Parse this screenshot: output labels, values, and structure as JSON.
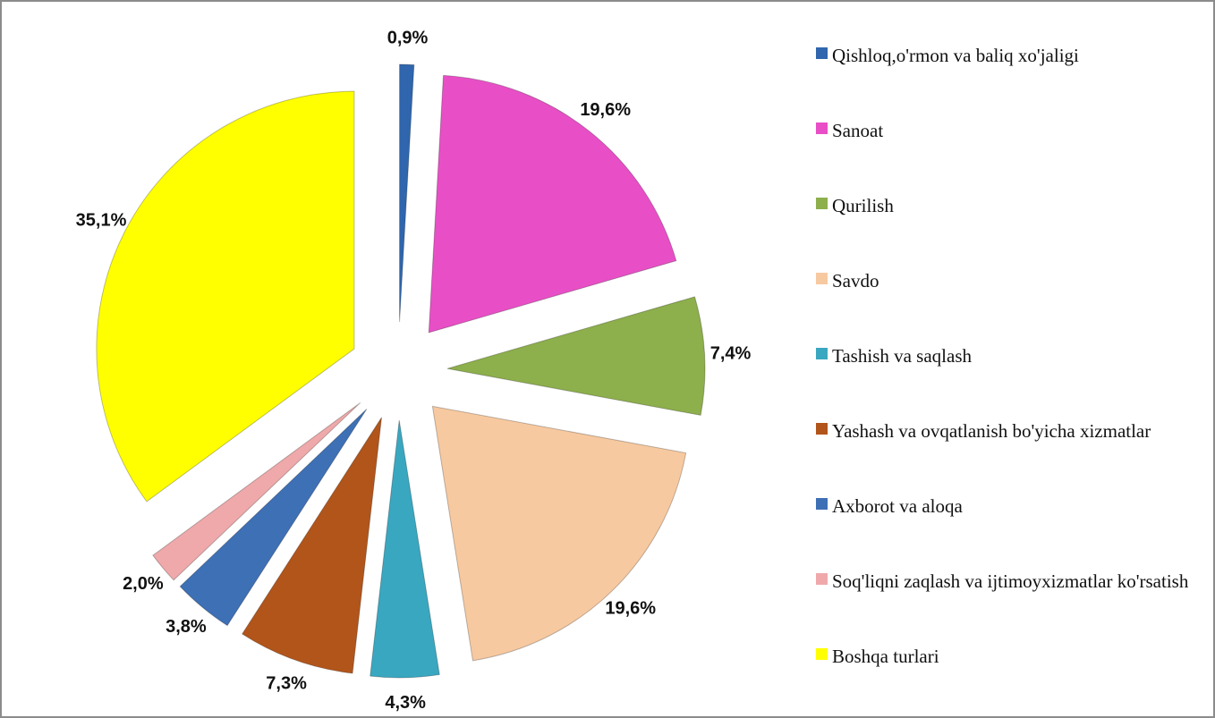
{
  "chart_data": {
    "type": "pie",
    "categories": [
      "Qishloq,o'rmon va baliq xo'jaligi",
      "Sanoat",
      "Qurilish",
      "Savdo",
      "Tashish va saqlash",
      "Yashash va ovqatlanish bo'yicha xizmatlar",
      "Axborot va aloqa",
      "Soq'liqni zaqlash va ijtimoyxizmatlar ko'rsatish",
      "Boshqa turlari"
    ],
    "values": [
      0.9,
      19.6,
      7.4,
      19.6,
      4.3,
      7.3,
      3.8,
      2.0,
      35.1
    ],
    "value_labels": [
      "0,9%",
      "19,6%",
      "7,4%",
      "19,6%",
      "4,3%",
      "7,3%",
      "3,8%",
      "2,0%",
      "35,1%"
    ],
    "colors": [
      "#2f66ad",
      "#e84fc6",
      "#8daf4c",
      "#f7c9a0",
      "#3aa7c0",
      "#b2551b",
      "#3e70b6",
      "#efa9aa",
      "#ffff00"
    ],
    "legend": "right"
  }
}
